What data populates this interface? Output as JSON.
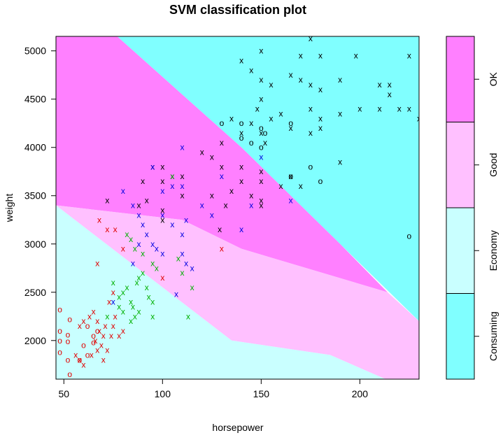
{
  "chart_data": {
    "type": "scatter",
    "title": "SVM classification plot",
    "xlabel": "horsepower",
    "ylabel": "weight",
    "xlim": [
      46,
      230
    ],
    "ylim": [
      1600,
      5150
    ],
    "xticks": [
      50,
      100,
      150,
      200
    ],
    "yticks": [
      2000,
      2500,
      3000,
      3500,
      4000,
      4500,
      5000
    ],
    "region_colors": {
      "Consuming": "#80ffff",
      "Economy": "#c9ffff",
      "Good": "#ffc0ff",
      "OK": "#ff80ff"
    },
    "legend": {
      "position": "right",
      "classes": [
        "Consuming",
        "Economy",
        "Good",
        "OK"
      ]
    },
    "class_colors": {
      "Consuming": "#000000",
      "Economy": "#e00000",
      "Good": "#00b000",
      "OK": "#0000e0"
    },
    "decision_boundaries": {
      "Consuming": [
        [
          77,
          5150
        ],
        [
          140,
          4000
        ],
        [
          230,
          2200
        ],
        [
          230,
          5150
        ],
        [
          46,
          5150
        ],
        [
          46,
          5150
        ]
      ],
      "OK": [
        [
          46,
          5150
        ],
        [
          77,
          5150
        ],
        [
          140,
          4000
        ],
        [
          190,
          3000
        ],
        [
          214,
          2500
        ],
        [
          140,
          2950
        ],
        [
          110,
          3250
        ],
        [
          46,
          3400
        ]
      ],
      "Good": [
        [
          46,
          3400
        ],
        [
          110,
          3250
        ],
        [
          140,
          2950
        ],
        [
          214,
          2500
        ],
        [
          230,
          2200
        ],
        [
          230,
          1600
        ],
        [
          213,
          1600
        ],
        [
          185,
          1850
        ],
        [
          135,
          2000
        ],
        [
          46,
          3400
        ]
      ],
      "Economy": [
        [
          46,
          3400
        ],
        [
          135,
          2000
        ],
        [
          185,
          1850
        ],
        [
          213,
          1600
        ],
        [
          46,
          1600
        ]
      ]
    },
    "series": [
      {
        "name": "Consuming",
        "points": [
          {
            "x": 150,
            "y": 5000,
            "m": "x"
          },
          {
            "x": 170,
            "y": 4950,
            "m": "x"
          },
          {
            "x": 180,
            "y": 4950,
            "m": "x"
          },
          {
            "x": 198,
            "y": 4950,
            "m": "x"
          },
          {
            "x": 225,
            "y": 4950,
            "m": "x"
          },
          {
            "x": 175,
            "y": 5130,
            "m": "x"
          },
          {
            "x": 140,
            "y": 4900,
            "m": "x"
          },
          {
            "x": 145,
            "y": 4800,
            "m": "x"
          },
          {
            "x": 150,
            "y": 4700,
            "m": "x"
          },
          {
            "x": 155,
            "y": 4650,
            "m": "x"
          },
          {
            "x": 165,
            "y": 4750,
            "m": "x"
          },
          {
            "x": 170,
            "y": 4700,
            "m": "x"
          },
          {
            "x": 175,
            "y": 4650,
            "m": "x"
          },
          {
            "x": 180,
            "y": 4600,
            "m": "x"
          },
          {
            "x": 190,
            "y": 4700,
            "m": "x"
          },
          {
            "x": 210,
            "y": 4650,
            "m": "x"
          },
          {
            "x": 215,
            "y": 4650,
            "m": "x"
          },
          {
            "x": 215,
            "y": 4550,
            "m": "x"
          },
          {
            "x": 200,
            "y": 4400,
            "m": "x"
          },
          {
            "x": 210,
            "y": 4400,
            "m": "x"
          },
          {
            "x": 220,
            "y": 4400,
            "m": "x"
          },
          {
            "x": 225,
            "y": 4400,
            "m": "x"
          },
          {
            "x": 230,
            "y": 4300,
            "m": "x"
          },
          {
            "x": 190,
            "y": 4350,
            "m": "x"
          },
          {
            "x": 180,
            "y": 4300,
            "m": "x"
          },
          {
            "x": 175,
            "y": 4400,
            "m": "x"
          },
          {
            "x": 165,
            "y": 4200,
            "m": "x"
          },
          {
            "x": 160,
            "y": 4350,
            "m": "x"
          },
          {
            "x": 155,
            "y": 4300,
            "m": "x"
          },
          {
            "x": 150,
            "y": 4500,
            "m": "x"
          },
          {
            "x": 148,
            "y": 4400,
            "m": "x"
          },
          {
            "x": 145,
            "y": 4250,
            "m": "x"
          },
          {
            "x": 150,
            "y": 4150,
            "m": "x"
          },
          {
            "x": 152,
            "y": 4050,
            "m": "x"
          },
          {
            "x": 140,
            "y": 4150,
            "m": "x"
          },
          {
            "x": 135,
            "y": 4300,
            "m": "x"
          },
          {
            "x": 130,
            "y": 4050,
            "m": "x"
          },
          {
            "x": 125,
            "y": 3900,
            "m": "x"
          },
          {
            "x": 120,
            "y": 3950,
            "m": "x"
          },
          {
            "x": 130,
            "y": 3800,
            "m": "x"
          },
          {
            "x": 140,
            "y": 3800,
            "m": "x"
          },
          {
            "x": 150,
            "y": 3750,
            "m": "x"
          },
          {
            "x": 150,
            "y": 3650,
            "m": "x"
          },
          {
            "x": 160,
            "y": 3600,
            "m": "x"
          },
          {
            "x": 170,
            "y": 3600,
            "m": "x"
          },
          {
            "x": 190,
            "y": 3850,
            "m": "x"
          },
          {
            "x": 175,
            "y": 4150,
            "m": "x"
          },
          {
            "x": 180,
            "y": 4200,
            "m": "x"
          },
          {
            "x": 165,
            "y": 3700,
            "m": "x"
          },
          {
            "x": 140,
            "y": 3650,
            "m": "x"
          },
          {
            "x": 135,
            "y": 3550,
            "m": "x"
          },
          {
            "x": 145,
            "y": 3500,
            "m": "x"
          },
          {
            "x": 150,
            "y": 3450,
            "m": "x"
          },
          {
            "x": 132,
            "y": 3400,
            "m": "x"
          },
          {
            "x": 125,
            "y": 3500,
            "m": "x"
          },
          {
            "x": 110,
            "y": 3700,
            "m": "x"
          },
          {
            "x": 105,
            "y": 3700,
            "m": "x"
          },
          {
            "x": 100,
            "y": 3800,
            "m": "x"
          },
          {
            "x": 95,
            "y": 3800,
            "m": "x"
          },
          {
            "x": 100,
            "y": 3650,
            "m": "x"
          },
          {
            "x": 90,
            "y": 3650,
            "m": "x"
          },
          {
            "x": 92,
            "y": 3450,
            "m": "x"
          },
          {
            "x": 88,
            "y": 3400,
            "m": "x"
          },
          {
            "x": 100,
            "y": 3350,
            "m": "x"
          },
          {
            "x": 72,
            "y": 3450,
            "m": "x"
          },
          {
            "x": 100,
            "y": 3250,
            "m": "x"
          },
          {
            "x": 129,
            "y": 3150,
            "m": "x"
          },
          {
            "x": 110,
            "y": 3500,
            "m": "x"
          },
          {
            "x": 150,
            "y": 3400,
            "m": "x"
          },
          {
            "x": 130,
            "y": 4250,
            "m": "o"
          },
          {
            "x": 140,
            "y": 4250,
            "m": "o"
          },
          {
            "x": 150,
            "y": 4200,
            "m": "o"
          },
          {
            "x": 152,
            "y": 4150,
            "m": "o"
          },
          {
            "x": 140,
            "y": 4100,
            "m": "o"
          },
          {
            "x": 145,
            "y": 4050,
            "m": "o"
          },
          {
            "x": 150,
            "y": 4000,
            "m": "o"
          },
          {
            "x": 165,
            "y": 4250,
            "m": "o"
          },
          {
            "x": 175,
            "y": 3800,
            "m": "o"
          },
          {
            "x": 180,
            "y": 3650,
            "m": "o"
          },
          {
            "x": 165,
            "y": 3700,
            "m": "o"
          },
          {
            "x": 225,
            "y": 3080,
            "m": "o"
          }
        ]
      },
      {
        "name": "Economy",
        "points": [
          {
            "x": 48,
            "y": 2320,
            "m": "o"
          },
          {
            "x": 53,
            "y": 2220,
            "m": "o"
          },
          {
            "x": 48,
            "y": 2100,
            "m": "o"
          },
          {
            "x": 52,
            "y": 2060,
            "m": "o"
          },
          {
            "x": 48,
            "y": 2000,
            "m": "o"
          },
          {
            "x": 52,
            "y": 1990,
            "m": "o"
          },
          {
            "x": 48,
            "y": 1880,
            "m": "o"
          },
          {
            "x": 52,
            "y": 1800,
            "m": "o"
          },
          {
            "x": 53,
            "y": 1650,
            "m": "o"
          },
          {
            "x": 58,
            "y": 1800,
            "m": "o"
          },
          {
            "x": 62,
            "y": 1850,
            "m": "o"
          },
          {
            "x": 60,
            "y": 1950,
            "m": "o"
          },
          {
            "x": 65,
            "y": 2050,
            "m": "o"
          },
          {
            "x": 67,
            "y": 2100,
            "m": "o"
          },
          {
            "x": 62,
            "y": 2150,
            "m": "o"
          },
          {
            "x": 65,
            "y": 1980,
            "m": "o"
          },
          {
            "x": 58,
            "y": 2150,
            "m": "x"
          },
          {
            "x": 60,
            "y": 2200,
            "m": "x"
          },
          {
            "x": 63,
            "y": 2250,
            "m": "x"
          },
          {
            "x": 65,
            "y": 2300,
            "m": "x"
          },
          {
            "x": 67,
            "y": 2200,
            "m": "x"
          },
          {
            "x": 68,
            "y": 2100,
            "m": "x"
          },
          {
            "x": 70,
            "y": 2050,
            "m": "x"
          },
          {
            "x": 69,
            "y": 1950,
            "m": "x"
          },
          {
            "x": 67,
            "y": 1900,
            "m": "x"
          },
          {
            "x": 64,
            "y": 1850,
            "m": "x"
          },
          {
            "x": 70,
            "y": 1800,
            "m": "x"
          },
          {
            "x": 72,
            "y": 1900,
            "m": "x"
          },
          {
            "x": 74,
            "y": 2050,
            "m": "x"
          },
          {
            "x": 75,
            "y": 2150,
            "m": "x"
          },
          {
            "x": 76,
            "y": 2250,
            "m": "x"
          },
          {
            "x": 78,
            "y": 2050,
            "m": "x"
          },
          {
            "x": 80,
            "y": 2100,
            "m": "x"
          },
          {
            "x": 58,
            "y": 1800,
            "m": "x"
          },
          {
            "x": 60,
            "y": 1750,
            "m": "x"
          },
          {
            "x": 56,
            "y": 1850,
            "m": "x"
          },
          {
            "x": 66,
            "y": 2000,
            "m": "x"
          },
          {
            "x": 71,
            "y": 2150,
            "m": "x"
          },
          {
            "x": 73,
            "y": 2400,
            "m": "x"
          },
          {
            "x": 75,
            "y": 2500,
            "m": "x"
          },
          {
            "x": 67,
            "y": 2800,
            "m": "x"
          },
          {
            "x": 72,
            "y": 3150,
            "m": "x"
          },
          {
            "x": 76,
            "y": 3150,
            "m": "x"
          },
          {
            "x": 68,
            "y": 3250,
            "m": "x"
          },
          {
            "x": 80,
            "y": 2950,
            "m": "x"
          },
          {
            "x": 130,
            "y": 2950,
            "m": "x"
          },
          {
            "x": 100,
            "y": 2650,
            "m": "x"
          }
        ]
      },
      {
        "name": "Good",
        "points": [
          {
            "x": 75,
            "y": 2600,
            "m": "x"
          },
          {
            "x": 78,
            "y": 2450,
            "m": "x"
          },
          {
            "x": 80,
            "y": 2500,
            "m": "x"
          },
          {
            "x": 82,
            "y": 2550,
            "m": "x"
          },
          {
            "x": 84,
            "y": 2400,
            "m": "x"
          },
          {
            "x": 85,
            "y": 2350,
            "m": "x"
          },
          {
            "x": 87,
            "y": 2600,
            "m": "x"
          },
          {
            "x": 88,
            "y": 2650,
            "m": "x"
          },
          {
            "x": 90,
            "y": 2700,
            "m": "x"
          },
          {
            "x": 92,
            "y": 2550,
            "m": "x"
          },
          {
            "x": 93,
            "y": 2450,
            "m": "x"
          },
          {
            "x": 95,
            "y": 2400,
            "m": "x"
          },
          {
            "x": 88,
            "y": 2300,
            "m": "x"
          },
          {
            "x": 86,
            "y": 2250,
            "m": "x"
          },
          {
            "x": 84,
            "y": 2200,
            "m": "x"
          },
          {
            "x": 80,
            "y": 2300,
            "m": "x"
          },
          {
            "x": 90,
            "y": 2900,
            "m": "x"
          },
          {
            "x": 86,
            "y": 2950,
            "m": "x"
          },
          {
            "x": 84,
            "y": 3050,
            "m": "x"
          },
          {
            "x": 82,
            "y": 3100,
            "m": "x"
          },
          {
            "x": 95,
            "y": 2800,
            "m": "x"
          },
          {
            "x": 97,
            "y": 2750,
            "m": "x"
          },
          {
            "x": 105,
            "y": 3700,
            "m": "x"
          },
          {
            "x": 108,
            "y": 2850,
            "m": "x"
          },
          {
            "x": 110,
            "y": 2700,
            "m": "x"
          },
          {
            "x": 115,
            "y": 2550,
            "m": "x"
          },
          {
            "x": 113,
            "y": 2250,
            "m": "x"
          },
          {
            "x": 72,
            "y": 2250,
            "m": "x"
          },
          {
            "x": 78,
            "y": 2350,
            "m": "x"
          },
          {
            "x": 95,
            "y": 2250,
            "m": "x"
          }
        ]
      },
      {
        "name": "OK",
        "points": [
          {
            "x": 80,
            "y": 3550,
            "m": "x"
          },
          {
            "x": 85,
            "y": 3400,
            "m": "x"
          },
          {
            "x": 88,
            "y": 3300,
            "m": "x"
          },
          {
            "x": 90,
            "y": 3200,
            "m": "x"
          },
          {
            "x": 92,
            "y": 3100,
            "m": "x"
          },
          {
            "x": 95,
            "y": 3000,
            "m": "x"
          },
          {
            "x": 97,
            "y": 2950,
            "m": "x"
          },
          {
            "x": 100,
            "y": 2900,
            "m": "x"
          },
          {
            "x": 100,
            "y": 3300,
            "m": "x"
          },
          {
            "x": 105,
            "y": 3200,
            "m": "x"
          },
          {
            "x": 110,
            "y": 3100,
            "m": "x"
          },
          {
            "x": 110,
            "y": 2900,
            "m": "x"
          },
          {
            "x": 112,
            "y": 2800,
            "m": "x"
          },
          {
            "x": 115,
            "y": 2750,
            "m": "x"
          },
          {
            "x": 105,
            "y": 3600,
            "m": "x"
          },
          {
            "x": 110,
            "y": 3600,
            "m": "x"
          },
          {
            "x": 120,
            "y": 3400,
            "m": "x"
          },
          {
            "x": 125,
            "y": 3300,
            "m": "x"
          },
          {
            "x": 95,
            "y": 3800,
            "m": "x"
          },
          {
            "x": 110,
            "y": 4000,
            "m": "x"
          },
          {
            "x": 100,
            "y": 3550,
            "m": "x"
          },
          {
            "x": 88,
            "y": 3000,
            "m": "x"
          },
          {
            "x": 85,
            "y": 2800,
            "m": "x"
          },
          {
            "x": 75,
            "y": 2400,
            "m": "x"
          },
          {
            "x": 150,
            "y": 3900,
            "m": "x"
          },
          {
            "x": 145,
            "y": 3400,
            "m": "x"
          },
          {
            "x": 140,
            "y": 3150,
            "m": "x"
          },
          {
            "x": 165,
            "y": 3450,
            "m": "x"
          },
          {
            "x": 130,
            "y": 3700,
            "m": "x"
          },
          {
            "x": 112,
            "y": 3250,
            "m": "x"
          },
          {
            "x": 107,
            "y": 2480,
            "m": "x"
          }
        ]
      }
    ]
  }
}
